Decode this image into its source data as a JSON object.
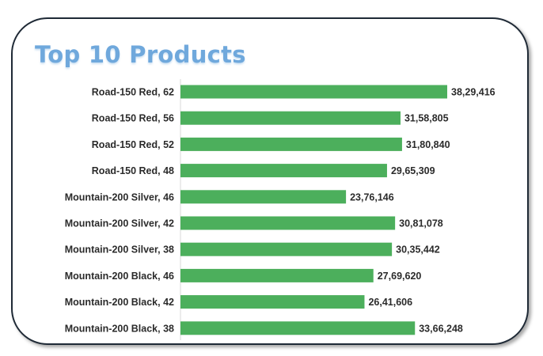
{
  "colors": {
    "bar": "#4caf5c",
    "title": "#6fa8dc",
    "border": "#1f2a36"
  },
  "chart_data": {
    "type": "bar",
    "orientation": "horizontal",
    "title": "Top 10 Products",
    "categories": [
      "Road-150 Red, 62",
      "Road-150 Red, 56",
      "Road-150 Red, 52",
      "Road-150 Red, 48",
      "Mountain-200 Silver, 46",
      "Mountain-200 Silver, 42",
      "Mountain-200 Silver, 38",
      "Mountain-200 Black, 46",
      "Mountain-200 Black, 42",
      "Mountain-200 Black, 38"
    ],
    "values": [
      3829416,
      3158805,
      3180840,
      2965309,
      2376146,
      3081078,
      3035442,
      2769620,
      2641606,
      3366248
    ],
    "value_labels": [
      "38,29,416",
      "31,58,805",
      "31,80,840",
      "29,65,309",
      "23,76,146",
      "30,81,078",
      "30,35,442",
      "27,69,620",
      "26,41,606",
      "33,66,248"
    ],
    "xlim": [
      0,
      4000000
    ],
    "grid": false,
    "legend": "none"
  }
}
